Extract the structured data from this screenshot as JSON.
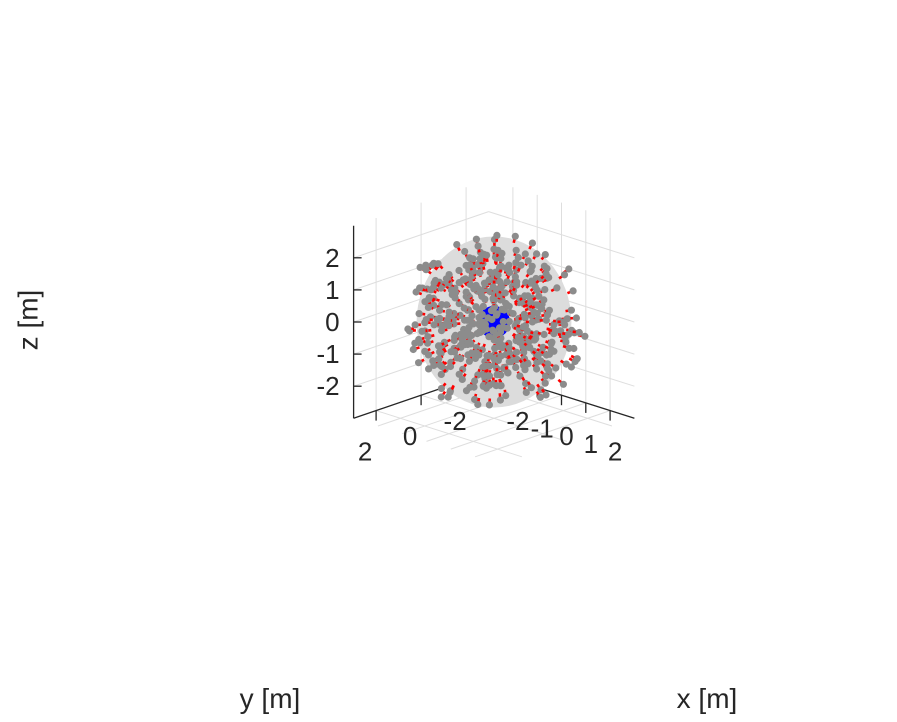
{
  "chart_data": {
    "type": "scatter",
    "subtype": "3d-quiver",
    "title": "",
    "xlabel": "x [m]",
    "ylabel": "y [m]",
    "zlabel": "z [m]",
    "xlim": [
      -3,
      3
    ],
    "ylim": [
      -3,
      3
    ],
    "zlim": [
      -3,
      3
    ],
    "xticks": [
      -2,
      -1,
      0,
      1,
      2
    ],
    "xtick_labels": [
      "-2",
      "-1",
      "0",
      "1",
      "2"
    ],
    "yticks": [
      -2,
      0,
      2
    ],
    "ytick_labels": [
      "-2",
      "0",
      "2"
    ],
    "zticks": [
      -2,
      -1,
      0,
      1,
      2
    ],
    "ztick_labels": [
      "-2",
      "-1",
      "0",
      "1",
      "2"
    ],
    "grid": true,
    "colors": {
      "points": "#8c8c8c",
      "arrows": "#ff0000",
      "source_sphere": "#0000ff",
      "inner_sphere": "#dcdcdc",
      "axes": "#262626",
      "grid": "#dedede"
    },
    "source": {
      "center": [
        0,
        0,
        0
      ],
      "radius": 0.15
    },
    "inner_sphere_radius": 0.9,
    "point_cloud": {
      "count": 500,
      "inner_radius": 0.9,
      "outer_radius": 2.8,
      "arrow_direction": "radially-inward",
      "arrow_length": 0.2
    }
  }
}
